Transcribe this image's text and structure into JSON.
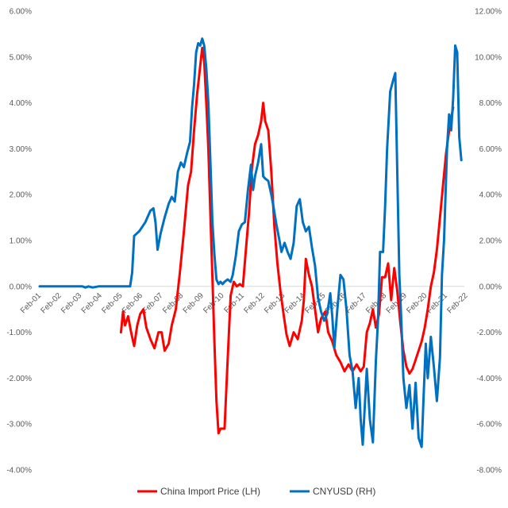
{
  "chart_data": {
    "type": "line",
    "title": "",
    "xlabel": "",
    "ylabel": "",
    "categories": [
      "Feb-01",
      "Feb-02",
      "Feb-03",
      "Feb-04",
      "Feb-05",
      "Feb-06",
      "Feb-07",
      "Feb-08",
      "Feb-09",
      "Feb-10",
      "Feb-11",
      "Feb-12",
      "Feb-13",
      "Feb-14",
      "Feb-15",
      "Feb-16",
      "Feb-17",
      "Feb-18",
      "Feb-19",
      "Feb-20",
      "Feb-21",
      "Feb-22"
    ],
    "y_left": {
      "min": -4.0,
      "max": 6.0,
      "step": 1.0,
      "tick_labels": [
        "-4.00%",
        "-3.00%",
        "-2.00%",
        "-1.00%",
        "0.00%",
        "1.00%",
        "2.00%",
        "3.00%",
        "4.00%",
        "5.00%",
        "6.00%"
      ]
    },
    "y_right": {
      "min": -8.0,
      "max": 12.0,
      "step": 2.0,
      "tick_labels": [
        "-8.00%",
        "-6.00%",
        "-4.00%",
        "-2.00%",
        "0.00%",
        "2.00%",
        "4.00%",
        "6.00%",
        "8.00%",
        "10.00%",
        "12.00%"
      ]
    },
    "legend_position": "bottom",
    "series": [
      {
        "name": "China Import Price (LH)",
        "axis": "left",
        "color": "#ff0000",
        "points": [
          [
            2005.1,
            -1.0
          ],
          [
            2005.2,
            -0.55
          ],
          [
            2005.3,
            -0.85
          ],
          [
            2005.45,
            -0.65
          ],
          [
            2005.6,
            -1.0
          ],
          [
            2005.75,
            -1.3
          ],
          [
            2005.9,
            -0.85
          ],
          [
            2006.05,
            -0.6
          ],
          [
            2006.2,
            -0.5
          ],
          [
            2006.35,
            -0.9
          ],
          [
            2006.55,
            -1.15
          ],
          [
            2006.75,
            -1.35
          ],
          [
            2006.95,
            -1.0
          ],
          [
            2007.1,
            -1.0
          ],
          [
            2007.25,
            -1.4
          ],
          [
            2007.45,
            -1.25
          ],
          [
            2007.6,
            -0.85
          ],
          [
            2007.8,
            -0.5
          ],
          [
            2008.0,
            0.3
          ],
          [
            2008.2,
            1.2
          ],
          [
            2008.4,
            2.2
          ],
          [
            2008.55,
            2.5
          ],
          [
            2008.7,
            3.4
          ],
          [
            2008.85,
            4.2
          ],
          [
            2009.0,
            4.8
          ],
          [
            2009.1,
            5.2
          ],
          [
            2009.2,
            4.9
          ],
          [
            2009.3,
            4.0
          ],
          [
            2009.4,
            3.0
          ],
          [
            2009.5,
            1.6
          ],
          [
            2009.6,
            0.2
          ],
          [
            2009.7,
            -1.2
          ],
          [
            2009.8,
            -2.5
          ],
          [
            2009.9,
            -3.2
          ],
          [
            2010.0,
            -3.1
          ],
          [
            2010.2,
            -3.1
          ],
          [
            2010.35,
            -1.6
          ],
          [
            2010.5,
            -0.2
          ],
          [
            2010.65,
            0.1
          ],
          [
            2010.8,
            0.0
          ],
          [
            2010.95,
            0.05
          ],
          [
            2011.1,
            0.0
          ],
          [
            2011.25,
            0.8
          ],
          [
            2011.4,
            1.6
          ],
          [
            2011.55,
            2.6
          ],
          [
            2011.7,
            3.1
          ],
          [
            2011.85,
            3.3
          ],
          [
            2012.0,
            3.6
          ],
          [
            2012.1,
            4.0
          ],
          [
            2012.2,
            3.6
          ],
          [
            2012.35,
            3.4
          ],
          [
            2012.5,
            2.5
          ],
          [
            2012.65,
            1.3
          ],
          [
            2012.8,
            0.5
          ],
          [
            2012.95,
            -0.1
          ],
          [
            2013.1,
            -0.6
          ],
          [
            2013.25,
            -1.05
          ],
          [
            2013.4,
            -1.3
          ],
          [
            2013.6,
            -1.0
          ],
          [
            2013.8,
            -1.15
          ],
          [
            2014.0,
            -0.75
          ],
          [
            2014.1,
            -0.3
          ],
          [
            2014.2,
            0.6
          ],
          [
            2014.35,
            0.25
          ],
          [
            2014.5,
            0.0
          ],
          [
            2014.65,
            -0.5
          ],
          [
            2014.8,
            -1.0
          ],
          [
            2014.95,
            -0.7
          ],
          [
            2015.15,
            -0.55
          ],
          [
            2015.3,
            -1.0
          ],
          [
            2015.5,
            -1.2
          ],
          [
            2015.7,
            -1.5
          ],
          [
            2015.9,
            -1.65
          ],
          [
            2016.1,
            -1.85
          ],
          [
            2016.3,
            -1.7
          ],
          [
            2016.5,
            -1.85
          ],
          [
            2016.7,
            -1.7
          ],
          [
            2016.9,
            -1.85
          ],
          [
            2017.05,
            -1.75
          ],
          [
            2017.2,
            -1.0
          ],
          [
            2017.35,
            -0.8
          ],
          [
            2017.5,
            -0.5
          ],
          [
            2017.65,
            -0.9
          ],
          [
            2017.8,
            -0.6
          ],
          [
            2017.95,
            0.2
          ],
          [
            2018.1,
            0.2
          ],
          [
            2018.25,
            0.5
          ],
          [
            2018.4,
            -0.3
          ],
          [
            2018.55,
            0.4
          ],
          [
            2018.7,
            -0.1
          ],
          [
            2018.85,
            -0.8
          ],
          [
            2019.0,
            -1.4
          ],
          [
            2019.15,
            -1.75
          ],
          [
            2019.3,
            -1.9
          ],
          [
            2019.45,
            -1.8
          ],
          [
            2019.6,
            -1.6
          ],
          [
            2019.75,
            -1.4
          ],
          [
            2019.9,
            -1.2
          ],
          [
            2020.05,
            -0.9
          ],
          [
            2020.2,
            -0.5
          ],
          [
            2020.35,
            0.0
          ],
          [
            2020.5,
            0.3
          ],
          [
            2020.65,
            0.8
          ],
          [
            2020.8,
            1.5
          ],
          [
            2020.95,
            2.2
          ],
          [
            2021.1,
            2.9
          ],
          [
            2021.25,
            3.4
          ],
          [
            2021.45,
            3.9
          ]
        ]
      },
      {
        "name": "CNYUSD (RH)",
        "axis": "right",
        "color": "#0070c0",
        "points": [
          [
            2001.1,
            0.0
          ],
          [
            2002.5,
            0.0
          ],
          [
            2003.2,
            0.0
          ],
          [
            2003.35,
            -0.05
          ],
          [
            2003.5,
            0.0
          ],
          [
            2003.7,
            -0.05
          ],
          [
            2004.0,
            0.0
          ],
          [
            2005.0,
            0.0
          ],
          [
            2005.55,
            0.0
          ],
          [
            2005.65,
            0.6
          ],
          [
            2005.75,
            2.2
          ],
          [
            2006.0,
            2.4
          ],
          [
            2006.3,
            2.8
          ],
          [
            2006.55,
            3.3
          ],
          [
            2006.7,
            3.4
          ],
          [
            2006.8,
            2.8
          ],
          [
            2006.9,
            1.6
          ],
          [
            2007.05,
            2.3
          ],
          [
            2007.25,
            3.0
          ],
          [
            2007.45,
            3.6
          ],
          [
            2007.6,
            3.9
          ],
          [
            2007.75,
            3.7
          ],
          [
            2007.9,
            5.0
          ],
          [
            2008.05,
            5.4
          ],
          [
            2008.2,
            5.2
          ],
          [
            2008.35,
            5.8
          ],
          [
            2008.5,
            6.3
          ],
          [
            2008.6,
            7.8
          ],
          [
            2008.7,
            8.8
          ],
          [
            2008.8,
            10.2
          ],
          [
            2008.9,
            10.6
          ],
          [
            2009.0,
            10.5
          ],
          [
            2009.1,
            10.8
          ],
          [
            2009.2,
            10.5
          ],
          [
            2009.3,
            9.5
          ],
          [
            2009.4,
            8.0
          ],
          [
            2009.5,
            5.5
          ],
          [
            2009.6,
            2.8
          ],
          [
            2009.7,
            1.4
          ],
          [
            2009.8,
            0.3
          ],
          [
            2009.9,
            0.1
          ],
          [
            2010.0,
            0.2
          ],
          [
            2010.1,
            0.1
          ],
          [
            2010.2,
            0.2
          ],
          [
            2010.35,
            0.3
          ],
          [
            2010.5,
            0.2
          ],
          [
            2010.6,
            0.5
          ],
          [
            2010.75,
            1.3
          ],
          [
            2010.9,
            2.4
          ],
          [
            2011.05,
            2.7
          ],
          [
            2011.2,
            2.8
          ],
          [
            2011.35,
            4.2
          ],
          [
            2011.5,
            5.3
          ],
          [
            2011.6,
            4.2
          ],
          [
            2011.7,
            4.8
          ],
          [
            2011.85,
            5.4
          ],
          [
            2012.0,
            6.2
          ],
          [
            2012.1,
            4.8
          ],
          [
            2012.2,
            4.7
          ],
          [
            2012.35,
            4.6
          ],
          [
            2012.5,
            4.0
          ],
          [
            2012.6,
            3.5
          ],
          [
            2012.75,
            2.7
          ],
          [
            2012.9,
            2.0
          ],
          [
            2013.0,
            1.5
          ],
          [
            2013.15,
            1.9
          ],
          [
            2013.3,
            1.5
          ],
          [
            2013.45,
            1.2
          ],
          [
            2013.6,
            1.9
          ],
          [
            2013.75,
            3.5
          ],
          [
            2013.9,
            3.8
          ],
          [
            2014.05,
            2.8
          ],
          [
            2014.2,
            2.4
          ],
          [
            2014.35,
            2.6
          ],
          [
            2014.5,
            1.7
          ],
          [
            2014.65,
            0.9
          ],
          [
            2014.8,
            -0.5
          ],
          [
            2014.95,
            -1.1
          ],
          [
            2015.1,
            -1.5
          ],
          [
            2015.25,
            -1.2
          ],
          [
            2015.4,
            -0.3
          ],
          [
            2015.5,
            -1.3
          ],
          [
            2015.6,
            -2.7
          ],
          [
            2015.75,
            -1.0
          ],
          [
            2015.9,
            0.5
          ],
          [
            2016.05,
            0.3
          ],
          [
            2016.2,
            -1.0
          ],
          [
            2016.35,
            -3.0
          ],
          [
            2016.5,
            -3.7
          ],
          [
            2016.65,
            -5.3
          ],
          [
            2016.8,
            -4.0
          ],
          [
            2016.9,
            -5.8
          ],
          [
            2017.0,
            -6.9
          ],
          [
            2017.1,
            -5.2
          ],
          [
            2017.2,
            -3.6
          ],
          [
            2017.35,
            -5.8
          ],
          [
            2017.5,
            -6.8
          ],
          [
            2017.65,
            -3.2
          ],
          [
            2017.75,
            -1.5
          ],
          [
            2017.85,
            1.5
          ],
          [
            2018.0,
            1.5
          ],
          [
            2018.1,
            3.5
          ],
          [
            2018.2,
            6.0
          ],
          [
            2018.35,
            8.5
          ],
          [
            2018.5,
            9.0
          ],
          [
            2018.6,
            9.3
          ],
          [
            2018.7,
            5.0
          ],
          [
            2018.8,
            0.5
          ],
          [
            2018.9,
            -1.5
          ],
          [
            2019.0,
            -4.0
          ],
          [
            2019.15,
            -5.3
          ],
          [
            2019.3,
            -4.3
          ],
          [
            2019.45,
            -6.2
          ],
          [
            2019.6,
            -4.2
          ],
          [
            2019.75,
            -6.6
          ],
          [
            2019.9,
            -7.0
          ],
          [
            2020.0,
            -4.7
          ],
          [
            2020.1,
            -2.5
          ],
          [
            2020.2,
            -4.0
          ],
          [
            2020.35,
            -2.2
          ],
          [
            2020.5,
            -3.5
          ],
          [
            2020.65,
            -5.0
          ],
          [
            2020.8,
            -3.1
          ],
          [
            2020.9,
            0.5
          ],
          [
            2021.0,
            2.0
          ],
          [
            2021.15,
            6.0
          ],
          [
            2021.25,
            7.5
          ],
          [
            2021.35,
            6.8
          ],
          [
            2021.45,
            8.2
          ],
          [
            2021.55,
            10.5
          ],
          [
            2021.65,
            10.2
          ],
          [
            2021.75,
            6.5
          ],
          [
            2021.85,
            5.5
          ]
        ]
      }
    ]
  }
}
